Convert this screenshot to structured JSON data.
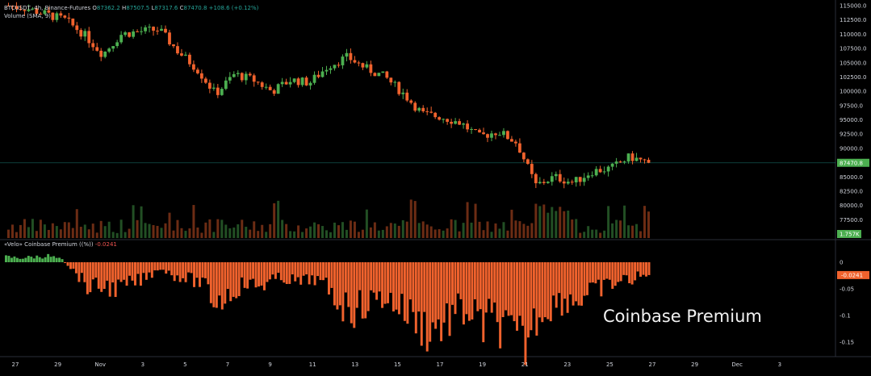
{
  "legend": {
    "symbol": "BTCUSDT, 4h, Binance-Futures",
    "o_label": "O",
    "o_val": "87362.2",
    "h_label": "H",
    "h_val": "87507.5",
    "l_label": "L",
    "l_val": "87317.6",
    "c_label": "C",
    "c_val": "87470.8",
    "change": "+108.6 (+0.12%)",
    "volume_label": "Volume (SMA, 9)",
    "volume_val": "1.757K",
    "premium_label": "«Velo» Coinbase Premium ((%))",
    "premium_val": "-0.0241"
  },
  "annotation": "Coinbase Premium",
  "colors": {
    "up": "#4caf50",
    "down": "#f0622d",
    "axis_text": "#d1d4dc",
    "price_line": "#26a69a",
    "volume_badge": "#4caf50",
    "premium_badge": "#f0622d",
    "premium_bar": "#f0622d",
    "premium_pos": "#4caf50"
  },
  "chart_data": [
    {
      "type": "candlestick",
      "title": "BTCUSDT, 4h, Binance-Futures",
      "x": [
        "Oct 27",
        "Oct 29",
        "Nov",
        "Nov 3",
        "Nov 5",
        "Nov 7",
        "Nov 9",
        "Nov 11",
        "Nov 13",
        "Nov 15",
        "Nov 17",
        "Nov 19",
        "Nov 21",
        "Nov 23",
        "Nov 25"
      ],
      "close_path": [
        115000,
        114500,
        113500,
        112500,
        110000,
        106500,
        110000,
        110500,
        110800,
        107000,
        104000,
        99500,
        103000,
        102000,
        100000,
        102000,
        101500,
        104500,
        106000,
        104000,
        102500,
        99500,
        96000,
        95500,
        94500,
        92000,
        93000,
        91000,
        83500,
        85000,
        84000,
        86000,
        86500,
        88500,
        87470.8
      ],
      "last_price": 87470.8,
      "ylim": [
        75000,
        115000
      ],
      "yticks": [
        115000,
        112500,
        110000,
        107500,
        105000,
        102500,
        100000,
        97500,
        95000,
        92500,
        90000,
        85000,
        82500,
        80000,
        77500
      ]
    },
    {
      "type": "bar",
      "title": "Volume (SMA, 9)",
      "last_value": "1.757K"
    },
    {
      "type": "bar",
      "title": "«Velo» Coinbase Premium ((%))",
      "last_value": -0.0241,
      "envelope": [
        0.01,
        0.008,
        0.01,
        0.012,
        0.005,
        -0.02,
        -0.05,
        -0.045,
        -0.05,
        -0.04,
        -0.03,
        -0.01,
        -0.025,
        -0.03,
        -0.04,
        -0.075,
        -0.06,
        -0.04,
        -0.045,
        -0.035,
        -0.03,
        -0.04,
        -0.03,
        -0.05,
        -0.08,
        -0.09,
        -0.075,
        -0.065,
        -0.08,
        -0.1,
        -0.125,
        -0.12,
        -0.1,
        -0.09,
        -0.12,
        -0.105,
        -0.14,
        -0.16,
        -0.1,
        -0.08,
        -0.07,
        -0.07,
        -0.055,
        -0.045,
        -0.035,
        -0.03,
        -0.0241
      ],
      "ylim": [
        -0.17,
        0.02
      ],
      "yticks": [
        0,
        -0.05,
        -0.1,
        -0.15
      ],
      "ytick_labels": [
        "0",
        "-0.05",
        "-0.1",
        "-0.15"
      ]
    }
  ],
  "x_axis": {
    "labels": [
      "27",
      "29",
      "Nov",
      "3",
      "5",
      "7",
      "9",
      "11",
      "13",
      "15",
      "17",
      "19",
      "21",
      "23",
      "25",
      "27",
      "29",
      "Dec",
      "3"
    ]
  },
  "y_axis": {
    "price_labels": [
      "115000.0",
      "112500.0",
      "110000.0",
      "107500.0",
      "105000.0",
      "102500.0",
      "100000.0",
      "97500.0",
      "95000.0",
      "92500.0",
      "90000.0",
      "85000.0",
      "82500.0",
      "80000.0",
      "77500.0"
    ],
    "last_price_label": "87470.8"
  }
}
